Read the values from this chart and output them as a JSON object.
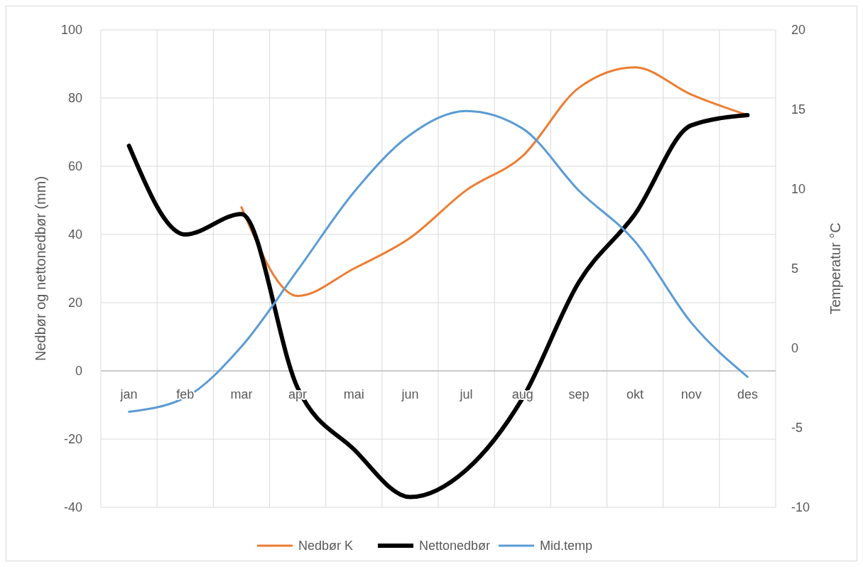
{
  "chart_data": {
    "type": "line",
    "categories": [
      "jan",
      "feb",
      "mar",
      "apr",
      "mai",
      "jun",
      "jul",
      "aug",
      "sep",
      "okt",
      "nov",
      "des"
    ],
    "series": [
      {
        "name": "Nedbør K",
        "color": "#ed7d31",
        "values": [
          null,
          null,
          48,
          22,
          30,
          39,
          53,
          63,
          83,
          89,
          81,
          75
        ]
      },
      {
        "name": "Nettonedbør",
        "color": "#000000",
        "values": [
          66,
          40,
          46,
          -5,
          -23,
          -37,
          -29,
          -8,
          26,
          46,
          72,
          75
        ]
      },
      {
        "name": "Mid.temp",
        "color": "#5b9bd5",
        "axis": "y2",
        "values": [
          -4.0,
          -3.1,
          0.1,
          4.9,
          9.8,
          13.4,
          14.9,
          13.8,
          9.9,
          6.7,
          1.6,
          -1.8
        ]
      }
    ],
    "ylim": [
      -40,
      100
    ],
    "yticks": [
      -40,
      -20,
      0,
      20,
      40,
      60,
      80,
      100
    ],
    "y2lim": [
      -10,
      20
    ],
    "y2ticks": [
      -10,
      -5,
      0,
      5,
      10,
      15,
      20
    ],
    "ylabel": "Nedbør og nettonedbør  (mm)",
    "y2label": "Temperatur °C",
    "grid": true,
    "legend": "bottom"
  }
}
